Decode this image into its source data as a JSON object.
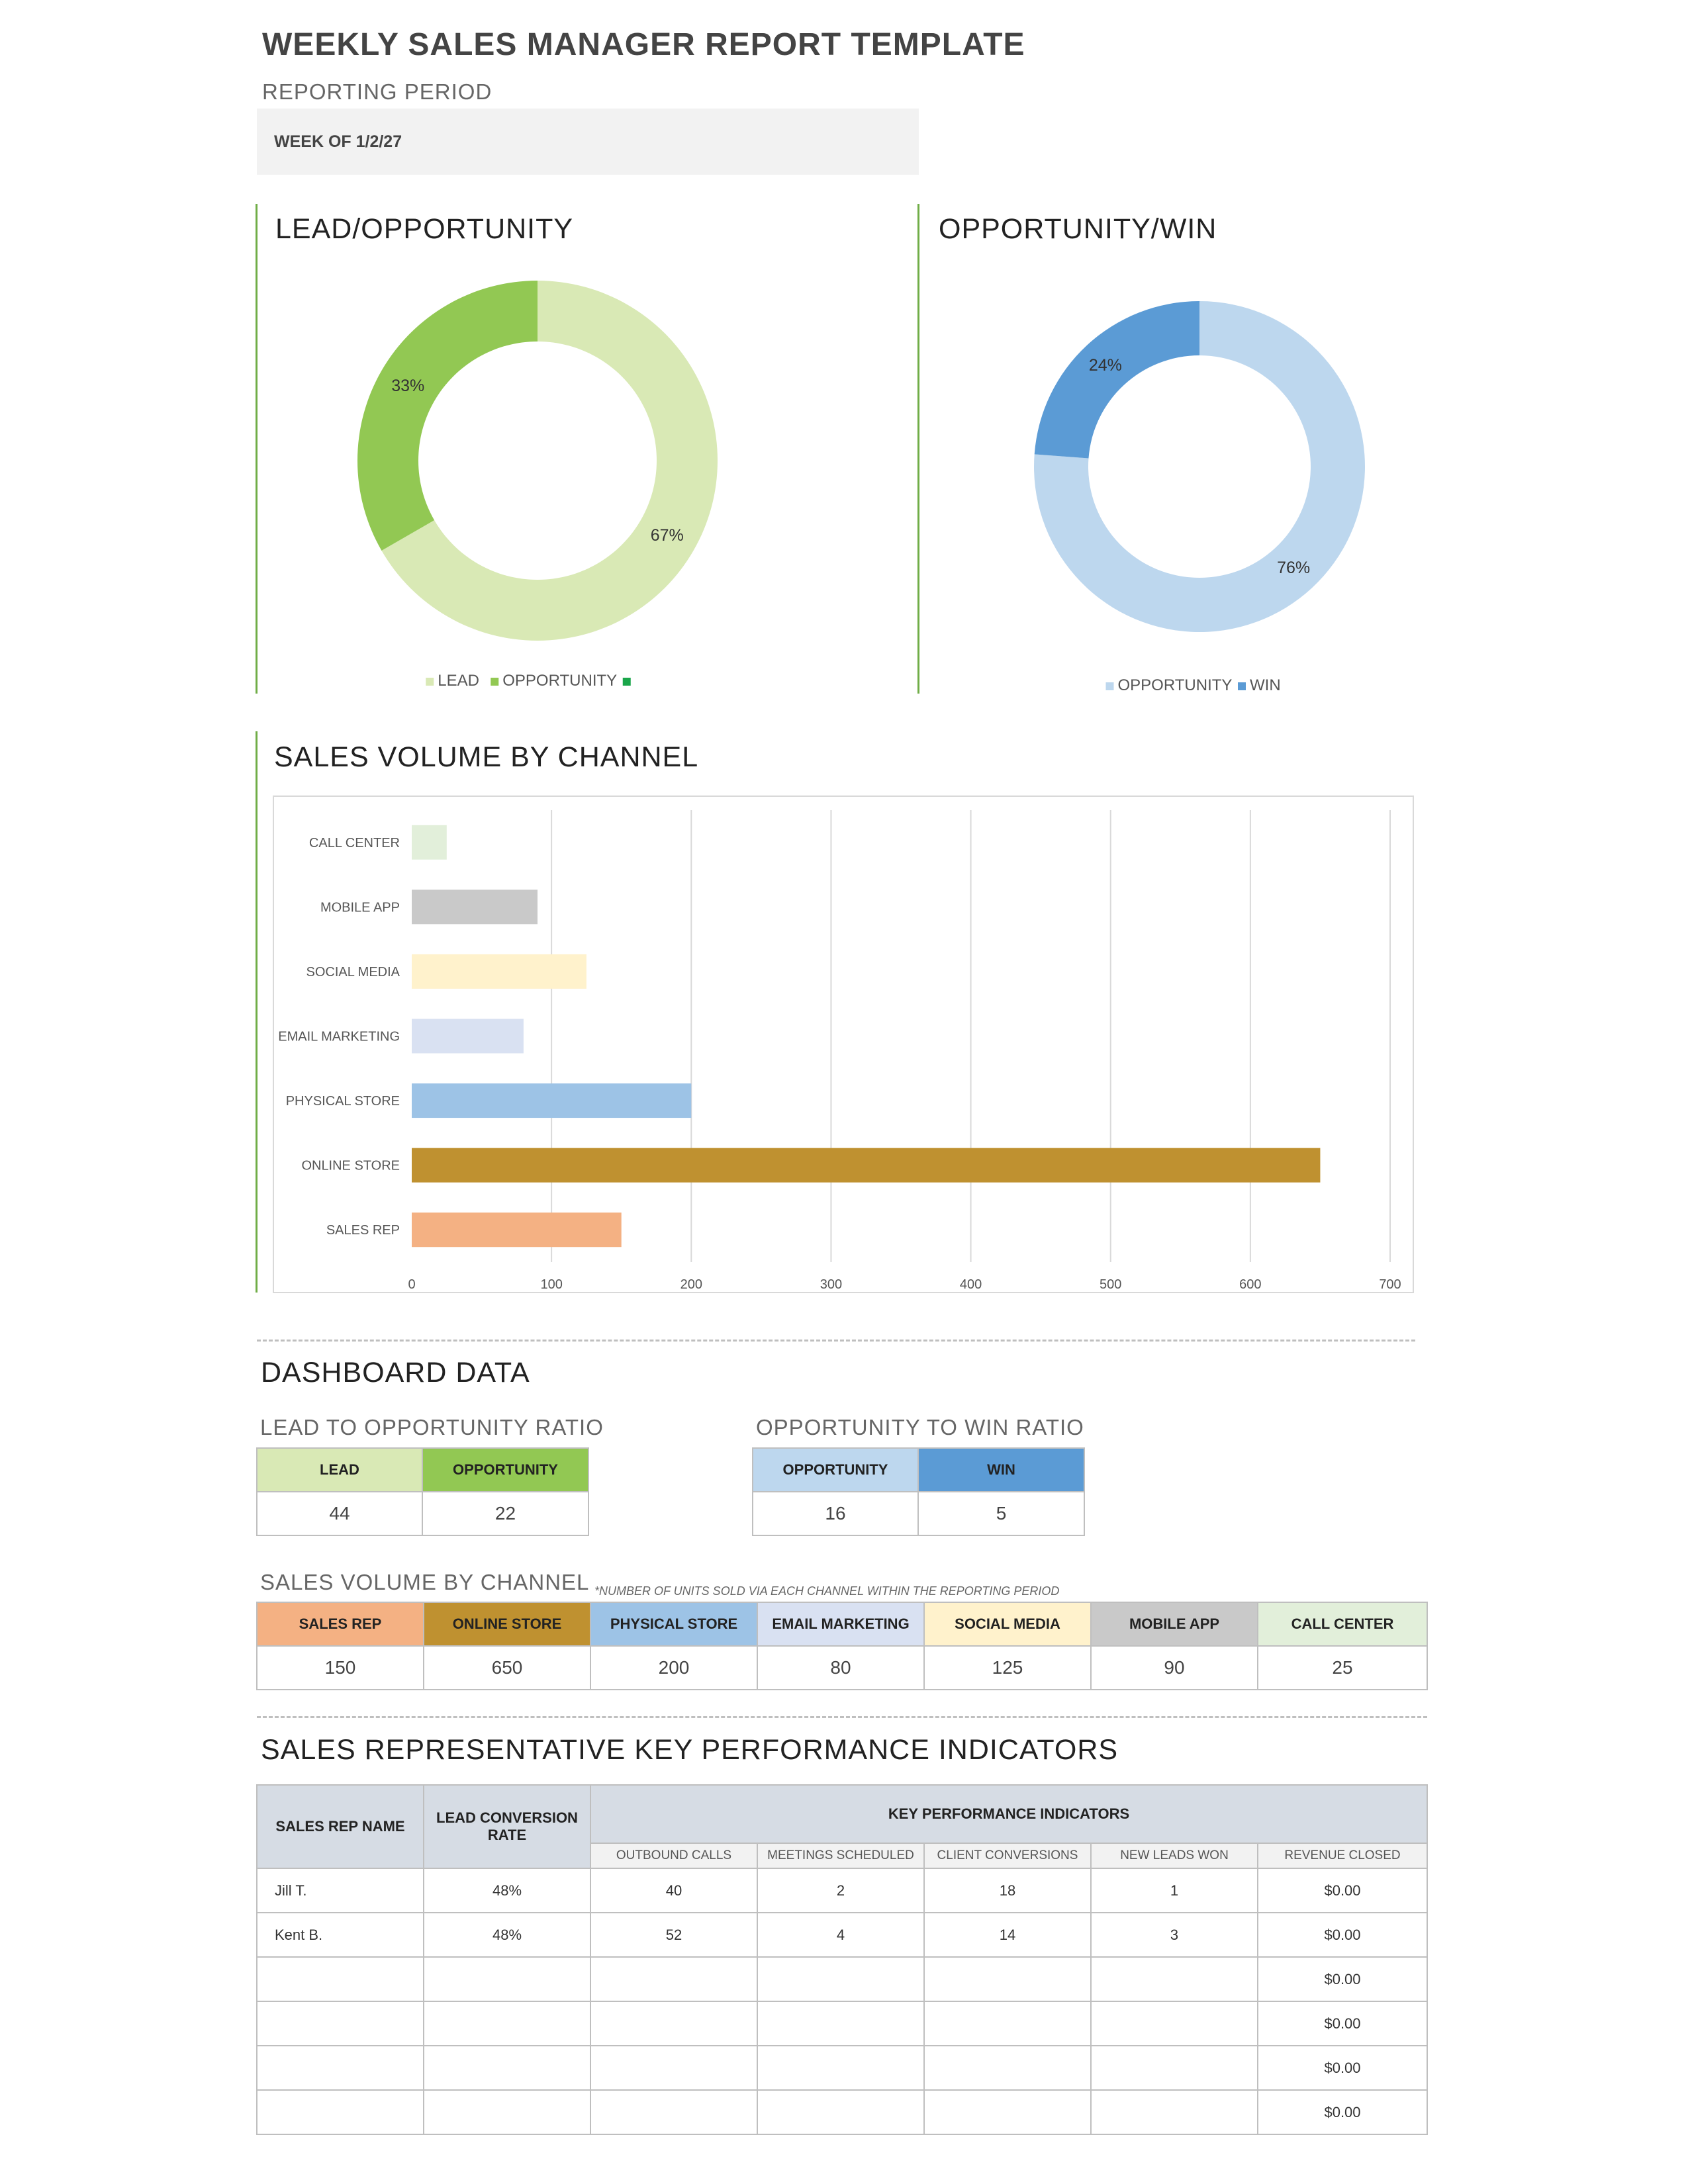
{
  "header": {
    "title": "WEEKLY SALES MANAGER REPORT TEMPLATE",
    "period_label": "REPORTING PERIOD",
    "period_value": "WEEK OF 1/2/27"
  },
  "chart_data": [
    {
      "type": "pie",
      "title": "LEAD/OPPORTUNITY",
      "donut": true,
      "slices": [
        {
          "label": "LEAD",
          "value": 44,
          "percent_label": "67%",
          "color": "#d9e9b5"
        },
        {
          "label": "OPPORTUNITY",
          "value": 22,
          "percent_label": "33%",
          "color": "#92c853"
        }
      ],
      "legend": [
        "LEAD",
        "OPPORTUNITY",
        ""
      ],
      "legend_colors": [
        "#d9e9b5",
        "#92c853",
        "#1aa64a"
      ],
      "legend_position": "bottom"
    },
    {
      "type": "pie",
      "title": "OPPORTUNITY/WIN",
      "donut": true,
      "slices": [
        {
          "label": "OPPORTUNITY",
          "value": 16,
          "percent_label": "76%",
          "color": "#bdd7ee"
        },
        {
          "label": "WIN",
          "value": 5,
          "percent_label": "24%",
          "color": "#5b9bd5"
        }
      ],
      "legend": [
        "OPPORTUNITY",
        "WIN"
      ],
      "legend_colors": [
        "#bdd7ee",
        "#5b9bd5"
      ],
      "legend_position": "bottom"
    },
    {
      "type": "bar",
      "orientation": "horizontal",
      "title": "SALES VOLUME BY CHANNEL",
      "categories": [
        "CALL CENTER",
        "MOBILE APP",
        "SOCIAL MEDIA",
        "EMAIL MARKETING",
        "PHYSICAL STORE",
        "ONLINE STORE",
        "SALES REP"
      ],
      "values": [
        25,
        90,
        125,
        80,
        200,
        650,
        150
      ],
      "colors": [
        "#e2efda",
        "#c9c9c9",
        "#fff2cc",
        "#d9e1f2",
        "#9dc3e6",
        "#bf9130",
        "#f4b183"
      ],
      "xlim": [
        0,
        700
      ],
      "xticks": [
        "0",
        "100",
        "200",
        "300",
        "400",
        "500",
        "600",
        "700"
      ],
      "grid": true
    }
  ],
  "dashboard": {
    "title": "DASHBOARD DATA",
    "lead_opp": {
      "title": "LEAD TO OPPORTUNITY RATIO",
      "headers": [
        "LEAD",
        "OPPORTUNITY"
      ],
      "values": [
        "44",
        "22"
      ],
      "colors": [
        "#d9e9b5",
        "#92c853"
      ]
    },
    "opp_win": {
      "title": "OPPORTUNITY TO WIN RATIO",
      "headers": [
        "OPPORTUNITY",
        "WIN"
      ],
      "values": [
        "16",
        "5"
      ],
      "colors": [
        "#bdd7ee",
        "#5b9bd5"
      ]
    },
    "channel": {
      "title": "SALES VOLUME BY CHANNEL",
      "note": "*NUMBER OF UNITS SOLD VIA EACH CHANNEL WITHIN THE REPORTING PERIOD",
      "headers": [
        "SALES REP",
        "ONLINE STORE",
        "PHYSICAL STORE",
        "EMAIL MARKETING",
        "SOCIAL MEDIA",
        "MOBILE APP",
        "CALL CENTER"
      ],
      "values": [
        "150",
        "650",
        "200",
        "80",
        "125",
        "90",
        "25"
      ],
      "colors": [
        "#f4b183",
        "#bf9130",
        "#9dc3e6",
        "#d9e1f2",
        "#fff2cc",
        "#c9c9c9",
        "#e2efda"
      ]
    }
  },
  "kpi": {
    "title": "SALES REPRESENTATIVE KEY PERFORMANCE INDICATORS",
    "col_name": "SALES REP NAME",
    "col_rate": "LEAD CONVERSION RATE",
    "col_kpi": "KEY PERFORMANCE INDICATORS",
    "sub_headers": [
      "OUTBOUND CALLS",
      "MEETINGS SCHEDULED",
      "CLIENT CONVERSIONS",
      "NEW LEADS WON",
      "REVENUE CLOSED"
    ],
    "rows": [
      [
        "Jill T.",
        "48%",
        "40",
        "2",
        "18",
        "1",
        "$0.00"
      ],
      [
        "Kent B.",
        "48%",
        "52",
        "4",
        "14",
        "3",
        "$0.00"
      ],
      [
        "",
        "",
        "",
        "",
        "",
        "",
        "$0.00"
      ],
      [
        "",
        "",
        "",
        "",
        "",
        "",
        "$0.00"
      ],
      [
        "",
        "",
        "",
        "",
        "",
        "",
        "$0.00"
      ],
      [
        "",
        "",
        "",
        "",
        "",
        "",
        "$0.00"
      ]
    ]
  }
}
